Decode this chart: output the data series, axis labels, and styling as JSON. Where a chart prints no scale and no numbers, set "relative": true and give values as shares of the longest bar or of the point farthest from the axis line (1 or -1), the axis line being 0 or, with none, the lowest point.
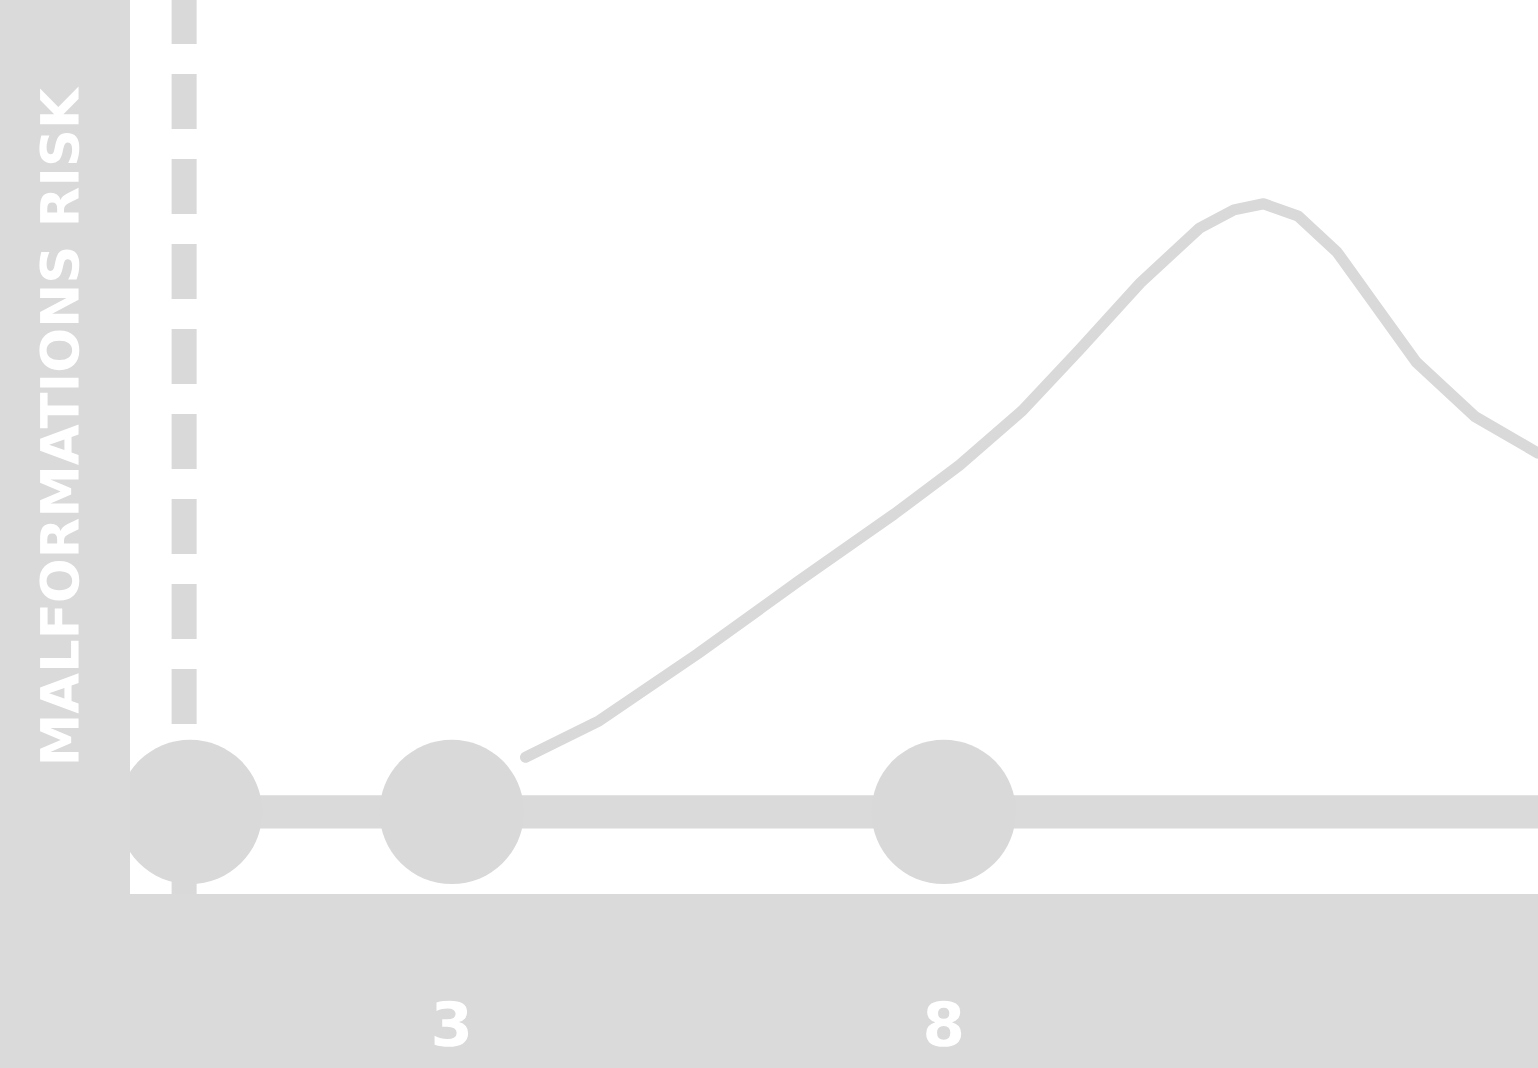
{
  "chart_data": {
    "type": "line",
    "ylabel": "MALFORMATIONS RISK",
    "relative": true,
    "xlim": [
      -0.27,
      14.04
    ],
    "xticks": [
      3,
      8
    ],
    "grid": false,
    "series": [
      {
        "color": "#d9d9d9",
        "marker": "none",
        "x": [
          3.75,
          4.5,
          5.5,
          6.53,
          7.5,
          8.16,
          8.8,
          9.38,
          10.0,
          10.6,
          10.95,
          11.25,
          11.6,
          12.0,
          12.4,
          12.8,
          13.4,
          14.04
        ],
        "values": [
          0.09,
          0.15,
          0.26,
          0.38,
          0.49,
          0.57,
          0.66,
          0.76,
          0.87,
          0.96,
          0.99,
          1.0,
          0.98,
          0.92,
          0.83,
          0.74,
          0.65,
          0.59
        ]
      },
      {
        "type": "scatter",
        "color": "#d9d9d9",
        "marker": "circle",
        "x": [
          0.34,
          3,
          8
        ],
        "values": [
          0,
          0,
          0
        ]
      }
    ],
    "ref_lines": [
      {
        "axis": "x",
        "value": 0.28,
        "color": "#d9d9d9",
        "line_style": "dashed"
      }
    ]
  }
}
